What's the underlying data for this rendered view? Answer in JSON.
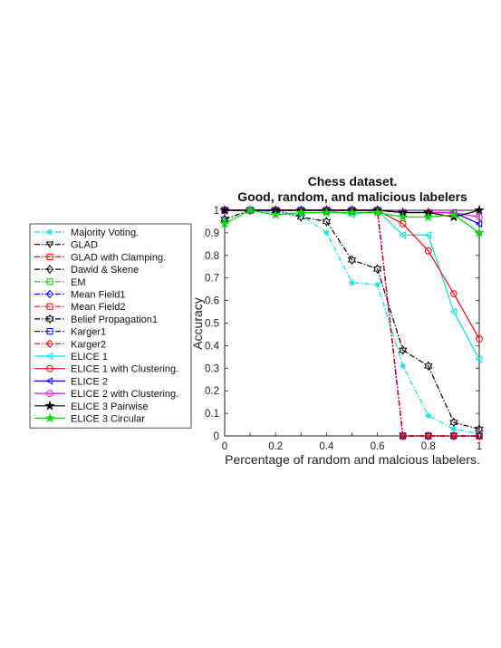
{
  "chart_data": {
    "type": "line",
    "title": "Chess dataset.",
    "subtitle": "Good, random, and malicious labelers",
    "xlabel": "Percentage of random and malcious labelers.",
    "ylabel": "Accuracy",
    "xlim": [
      0,
      1
    ],
    "ylim": [
      0,
      1
    ],
    "x_ticks": [
      "0",
      "0.2",
      "0.4",
      "0.6",
      "0.8",
      "1"
    ],
    "y_ticks": [
      "0",
      "0.1",
      "0.2",
      "0.3",
      "0.4",
      "0.5",
      "0.6",
      "0.7",
      "0.8",
      "0.9",
      "1"
    ],
    "grid": false,
    "legend_position": "outside-left",
    "x": [
      0,
      0.1,
      0.2,
      0.3,
      0.4,
      0.5,
      0.6,
      0.7,
      0.8,
      0.9,
      1.0
    ],
    "series": [
      {
        "name": "Majority Voting.",
        "color": "#00e5e5",
        "dash": "6,2,1.5,2",
        "marker": "asterisk",
        "values": [
          0.96,
          1.0,
          0.99,
          0.98,
          0.9,
          0.68,
          0.67,
          0.31,
          0.09,
          0.03,
          0.01
        ]
      },
      {
        "name": "GLAD",
        "color": "#000000",
        "dash": "6,2,1.5,2",
        "marker": "triangle-down",
        "values": [
          1.0,
          1.0,
          1.0,
          1.0,
          1.0,
          1.0,
          1.0,
          0.0,
          0.0,
          0.0,
          0.0
        ]
      },
      {
        "name": "GLAD with Clamping.",
        "color": "#ff0000",
        "dash": "6,2,1.5,2",
        "marker": "square",
        "values": [
          1.0,
          1.0,
          1.0,
          1.0,
          1.0,
          1.0,
          1.0,
          0.0,
          0.0,
          0.0,
          0.0
        ]
      },
      {
        "name": "Dawid & Skene",
        "color": "#000000",
        "dash": "6,2,1.5,2",
        "marker": "diamond",
        "values": [
          1.0,
          1.0,
          1.0,
          1.0,
          1.0,
          1.0,
          1.0,
          0.0,
          0.0,
          0.0,
          0.0
        ]
      },
      {
        "name": "EM",
        "color": "#00cc00",
        "dash": "6,2,1.5,2",
        "marker": "square",
        "values": [
          1.0,
          1.0,
          1.0,
          1.0,
          1.0,
          1.0,
          1.0,
          0.0,
          0.0,
          0.0,
          0.0
        ]
      },
      {
        "name": "Mean Field1",
        "color": "#0000ff",
        "dash": "6,2,1.5,2",
        "marker": "diamond",
        "values": [
          1.0,
          1.0,
          1.0,
          1.0,
          1.0,
          1.0,
          1.0,
          0.0,
          0.0,
          0.0,
          0.0
        ]
      },
      {
        "name": "Mean Field2",
        "color": "#ff0000",
        "dash": "6,2,1.5,2",
        "marker": "square",
        "values": [
          1.0,
          1.0,
          1.0,
          1.0,
          1.0,
          1.0,
          1.0,
          0.0,
          0.0,
          0.0,
          0.0
        ]
      },
      {
        "name": "Belief Propagation1",
        "color": "#000000",
        "dash": "6,2,1.5,2",
        "marker": "hexagram",
        "values": [
          0.96,
          1.0,
          1.0,
          0.97,
          0.95,
          0.78,
          0.74,
          0.38,
          0.31,
          0.06,
          0.03
        ]
      },
      {
        "name": "Karger1",
        "color": "#0000ff",
        "dash": "6,2,1.5,2",
        "marker": "square",
        "values": [
          1.0,
          1.0,
          1.0,
          1.0,
          1.0,
          1.0,
          1.0,
          0.0,
          0.0,
          0.0,
          0.0
        ]
      },
      {
        "name": "Karger2",
        "color": "#ff0000",
        "dash": "6,2,1.5,2",
        "marker": "diamond",
        "values": [
          1.0,
          1.0,
          1.0,
          1.0,
          1.0,
          1.0,
          1.0,
          0.0,
          0.0,
          0.0,
          0.0
        ]
      },
      {
        "name": "ELICE 1",
        "color": "#00e5e5",
        "dash": "",
        "marker": "triangle-left",
        "values": [
          1.0,
          1.0,
          1.0,
          1.0,
          1.0,
          0.98,
          1.0,
          0.89,
          0.89,
          0.55,
          0.34
        ]
      },
      {
        "name": "ELICE 1 with Clustering.",
        "color": "#ff0000",
        "dash": "",
        "marker": "circle",
        "values": [
          1.0,
          1.0,
          1.0,
          1.0,
          1.0,
          1.0,
          1.0,
          0.94,
          0.82,
          0.63,
          0.43
        ]
      },
      {
        "name": "ELICE 2",
        "color": "#0000ff",
        "dash": "",
        "marker": "triangle-left",
        "values": [
          1.0,
          1.0,
          1.0,
          1.0,
          1.0,
          1.0,
          1.0,
          0.99,
          0.99,
          0.99,
          0.94
        ]
      },
      {
        "name": "ELICE 2 with Clustering.",
        "color": "#ff00ff",
        "dash": "",
        "marker": "circle",
        "values": [
          1.0,
          1.0,
          1.0,
          1.0,
          1.0,
          1.0,
          1.0,
          0.99,
          0.99,
          0.99,
          0.97
        ]
      },
      {
        "name": "ELICE 3 Pairwise",
        "color": "#000000",
        "dash": "",
        "marker": "star",
        "values": [
          1.0,
          1.0,
          1.0,
          1.0,
          1.0,
          1.0,
          1.0,
          0.99,
          0.99,
          0.97,
          1.0
        ]
      },
      {
        "name": "ELICE 3 Circular",
        "color": "#00dd00",
        "dash": "",
        "marker": "star",
        "values": [
          0.94,
          1.0,
          0.98,
          0.99,
          0.99,
          0.99,
          0.99,
          0.97,
          0.97,
          0.98,
          0.9
        ]
      }
    ]
  }
}
